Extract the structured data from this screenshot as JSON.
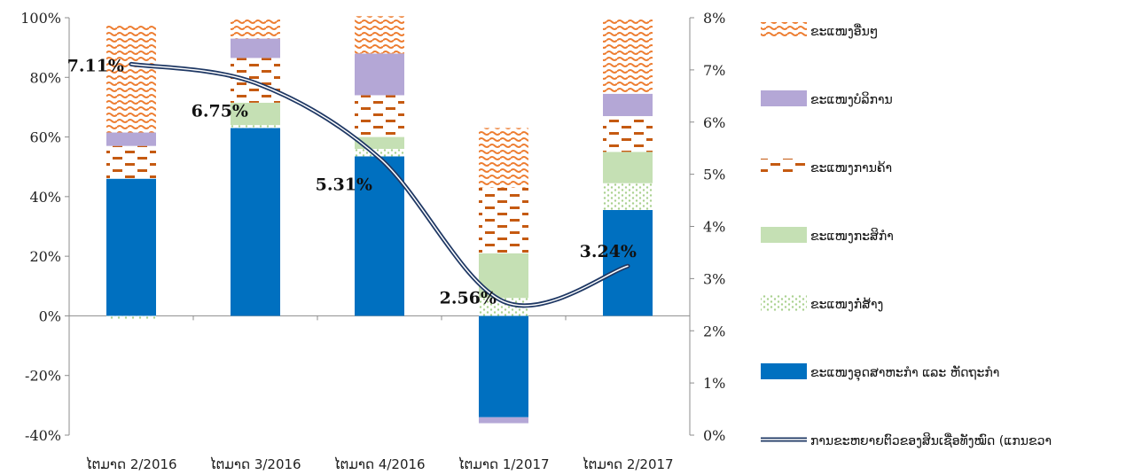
{
  "chart_data": {
    "type": "bar",
    "stacked": true,
    "categories": [
      "ໄຕມາດ 2/2016",
      "ໄຕມາດ 3/2016",
      "ໄຕມາດ 4/2016",
      "ໄຕມາດ 1/2017",
      "ໄຕມາດ 2/2017"
    ],
    "series": [
      {
        "name": "ຂະແໜງອຸດສາຫະກຳ ແລະ ຫັດຖະກຳ",
        "color": "#0070C0",
        "pattern": "solid",
        "values": [
          46,
          63,
          53.5,
          -34,
          35.5
        ]
      },
      {
        "name": "ຂະແໜງກໍ່ສ້າງ",
        "color": "#A9D18E",
        "pattern": "dots",
        "values": [
          -1,
          1,
          2.5,
          6,
          9
        ]
      },
      {
        "name": "ຂະແໜງກະສິກຳ",
        "color": "#C5E0B4",
        "pattern": "solid",
        "values": [
          0,
          7.5,
          4,
          15,
          10.5
        ]
      },
      {
        "name": "ຂະແໜງການຄ້າ",
        "color": "#C55A11",
        "pattern": "dashes",
        "values": [
          11,
          15,
          14,
          22,
          12
        ]
      },
      {
        "name": "ຂະແໜງບໍລິການ",
        "color": "#B4A7D6",
        "pattern": "solid",
        "values": [
          4.5,
          6.5,
          14,
          -2,
          7.5
        ]
      },
      {
        "name": "ຂະແໜງອື່ນໆ",
        "color": "#ED7D31",
        "pattern": "waves",
        "values": [
          36,
          6.5,
          12.5,
          20,
          25.5
        ]
      }
    ],
    "line_series": {
      "name": "ການຂະຫຍາຍຕົວຂອງສິນເຊື່ອທັງໝົດ (ແກນຂວາ",
      "axis": "right",
      "values": [
        7.11,
        6.75,
        5.31,
        2.56,
        3.24
      ],
      "labels": [
        "7.11%",
        "6.75%",
        "5.31%",
        "2.56%",
        "3.24%"
      ],
      "color": "#1F3864"
    },
    "left_axis": {
      "min": -40,
      "max": 100,
      "step": 20,
      "ticks": [
        "-40%",
        "-20%",
        "0%",
        "20%",
        "40%",
        "60%",
        "80%",
        "100%"
      ]
    },
    "right_axis": {
      "min": 0,
      "max": 8,
      "step": 1,
      "ticks": [
        "0%",
        "1%",
        "2%",
        "3%",
        "4%",
        "5%",
        "6%",
        "7%",
        "8%"
      ]
    },
    "legend_position": "right",
    "gridlines": false
  }
}
